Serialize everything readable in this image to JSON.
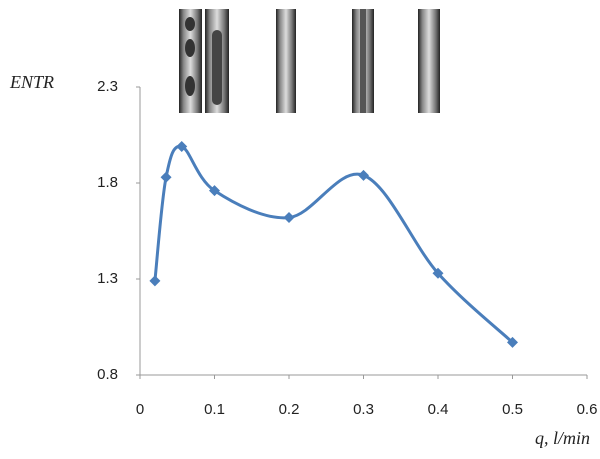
{
  "chart_data": {
    "type": "line",
    "y_label": "ENTR",
    "x_label": "q, l/min",
    "x": [
      0.02,
      0.035,
      0.056,
      0.1,
      0.2,
      0.3,
      0.4,
      0.5
    ],
    "series": [
      {
        "name": "ENTR",
        "color": "#4a7ebb",
        "values": [
          1.29,
          1.83,
          1.99,
          1.76,
          1.62,
          1.84,
          1.33,
          0.97
        ]
      }
    ],
    "xlim": [
      0,
      0.6
    ],
    "xticks": [
      0,
      0.1,
      0.2,
      0.3,
      0.4,
      0.5,
      0.6
    ],
    "ylim": [
      0.8,
      2.3
    ],
    "yticks": [
      0.8,
      1.3,
      1.8,
      2.3
    ],
    "smooth": true,
    "marker": "diamond"
  }
}
